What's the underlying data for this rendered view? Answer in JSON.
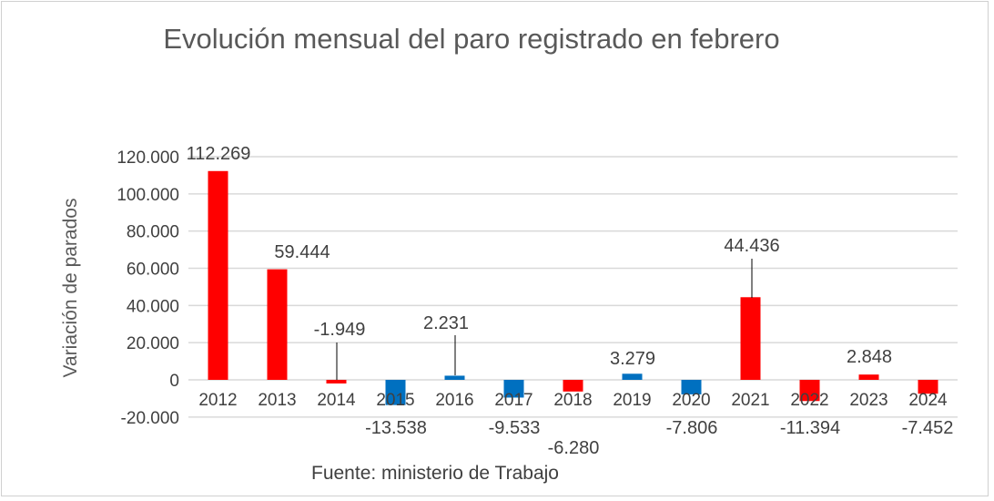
{
  "chart_data": {
    "type": "bar",
    "title": "Evolución mensual del paro registrado en febrero",
    "ylabel": "Variación de parados",
    "xlabel": "",
    "footer": "Fuente: ministerio de Trabajo",
    "ylim": [
      -20000,
      120000
    ],
    "yticks": [
      -20000,
      0,
      20000,
      40000,
      60000,
      80000,
      100000,
      120000
    ],
    "ytick_labels": [
      "-20.000",
      "0",
      "20.000",
      "40.000",
      "60.000",
      "80.000",
      "100.000",
      "120.000"
    ],
    "grid": true,
    "categories": [
      "2012",
      "2013",
      "2014",
      "2015",
      "2016",
      "2017",
      "2018",
      "2019",
      "2020",
      "2021",
      "2022",
      "2023",
      "2024"
    ],
    "values": [
      112269,
      59444,
      -1949,
      -13538,
      2231,
      -9533,
      -6280,
      3279,
      -7806,
      44436,
      -11394,
      2848,
      -7452
    ],
    "data_labels": [
      "112.269",
      "59.444",
      "-1.949",
      "-13.538",
      "2.231",
      "-9.533",
      "-6.280",
      "3.279",
      "-7.806",
      "44.436",
      "-11.394",
      "2.848",
      "-7.452"
    ],
    "bar_colors": [
      "#ff0000",
      "#ff0000",
      "#ff0000",
      "#0070c0",
      "#0070c0",
      "#0070c0",
      "#ff0000",
      "#0070c0",
      "#0070c0",
      "#ff0000",
      "#ff0000",
      "#ff0000",
      "#ff0000"
    ]
  }
}
